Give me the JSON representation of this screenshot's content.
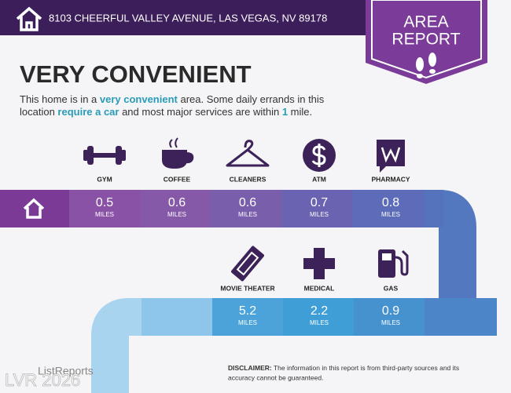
{
  "header": {
    "address": "8103 CHEERFUL VALLEY AVENUE, LAS VEGAS, NV 89178",
    "badge": [
      "AREA",
      "REPORT"
    ]
  },
  "title": "VERY CONVENIENT",
  "description": {
    "lines": [
      [
        "This home is in a ",
        "very convenient",
        " area. Some daily errands in this"
      ],
      [
        "location ",
        "require a car",
        " and most major services are within ",
        "1",
        " mile."
      ]
    ]
  },
  "unit": "MILES",
  "top_row": [
    {
      "label": "GYM",
      "distance": 0.5
    },
    {
      "label": "COFFEE",
      "distance": 0.6
    },
    {
      "label": "CLEANERS",
      "distance": 0.6
    },
    {
      "label": "ATM",
      "distance": 0.7
    },
    {
      "label": "PHARMACY",
      "distance": 0.8
    }
  ],
  "bottom_row": [
    {
      "label": "MOVIE THEATER",
      "distance": 5.2
    },
    {
      "label": "MEDICAL",
      "distance": 2.2
    },
    {
      "label": "GAS",
      "distance": 0.9
    }
  ],
  "footer": {
    "logo": "ListReports",
    "disclaimer_label": "DISCLAIMER:",
    "disclaimer": [
      " The information in this report is from third-party sources and its",
      "accuracy cannot be guaranteed."
    ],
    "watermark": "LVR 2026"
  }
}
